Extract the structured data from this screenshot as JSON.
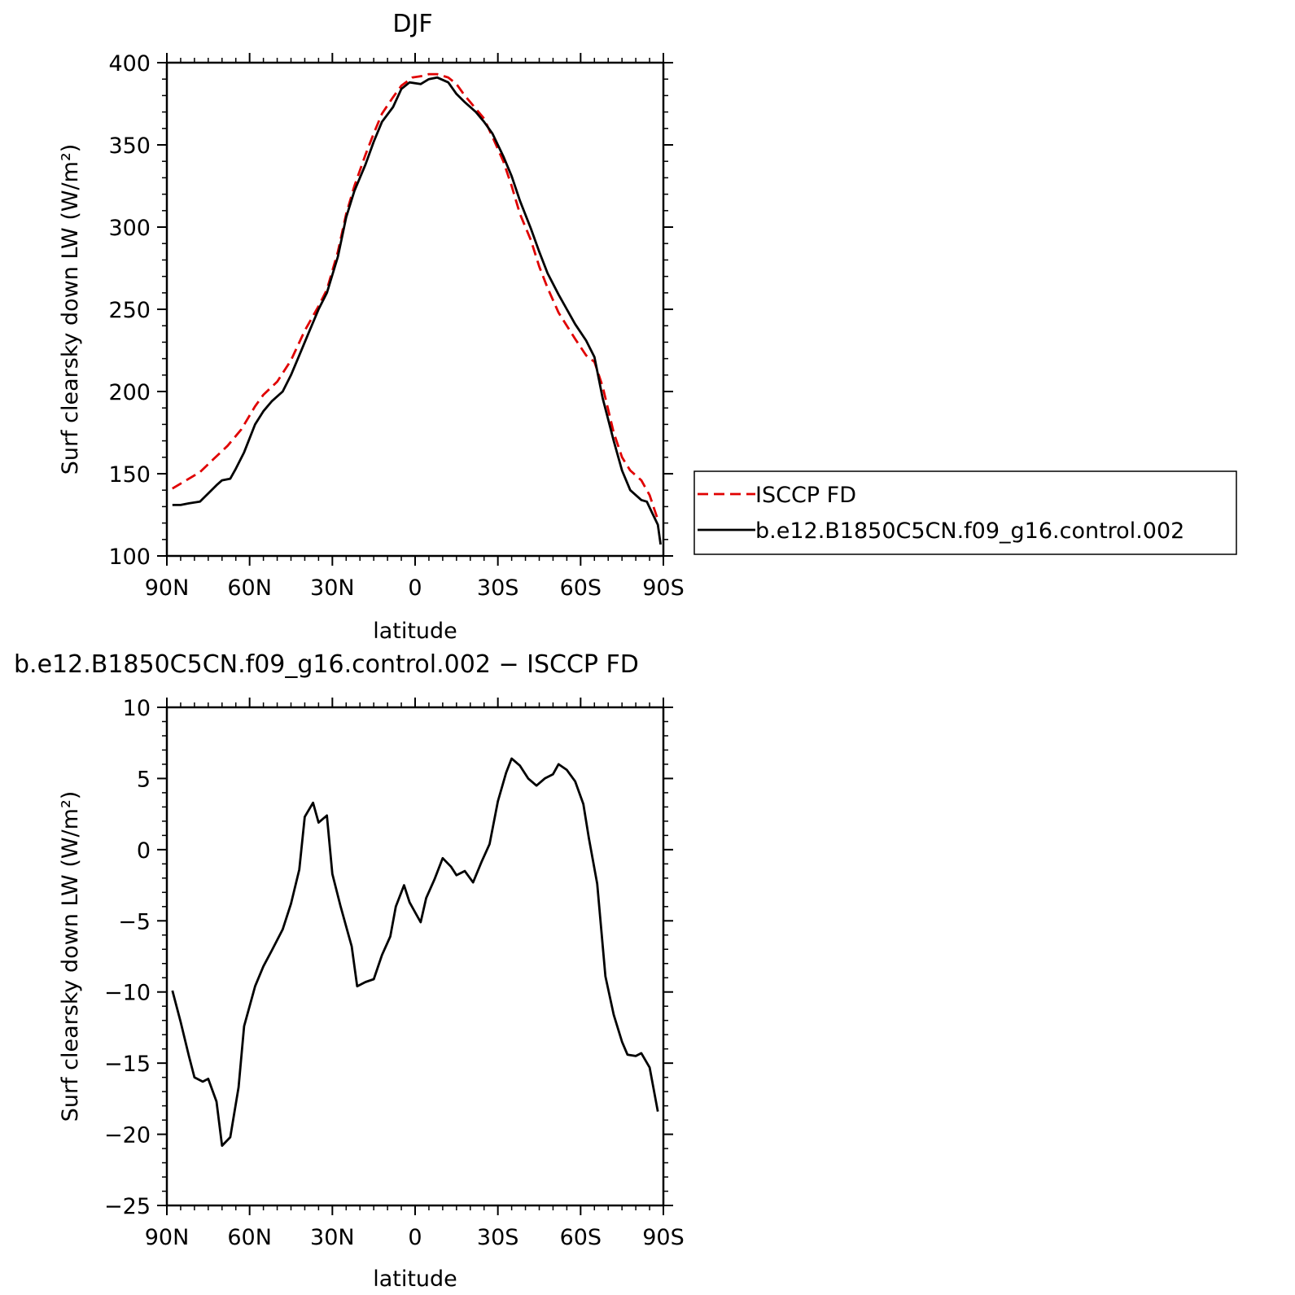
{
  "chart_data": [
    {
      "type": "line",
      "title": "DJF",
      "xlabel": "latitude",
      "ylabel": "Surf clearsky down LW (W/m²)",
      "xlim": [
        90,
        -90
      ],
      "ylim": [
        100,
        400
      ],
      "xticks": [
        {
          "value": 90,
          "label": "90N"
        },
        {
          "value": 60,
          "label": "60N"
        },
        {
          "value": 30,
          "label": "30N"
        },
        {
          "value": 0,
          "label": "0"
        },
        {
          "value": -30,
          "label": "30S"
        },
        {
          "value": -60,
          "label": "60S"
        },
        {
          "value": -90,
          "label": "90S"
        }
      ],
      "yticks": [
        {
          "value": 100,
          "label": "100"
        },
        {
          "value": 150,
          "label": "150"
        },
        {
          "value": 200,
          "label": "200"
        },
        {
          "value": 250,
          "label": "250"
        },
        {
          "value": 300,
          "label": "300"
        },
        {
          "value": 350,
          "label": "350"
        },
        {
          "value": 400,
          "label": "400"
        }
      ],
      "legend_position": "right",
      "series": [
        {
          "name": "ISCCP FD",
          "color": "#e00000",
          "dash": "dashed",
          "points": [
            [
              88,
              141
            ],
            [
              83,
              146
            ],
            [
              78,
              151
            ],
            [
              73,
              159
            ],
            [
              68,
              167
            ],
            [
              63,
              177
            ],
            [
              58,
              191
            ],
            [
              55,
              198
            ],
            [
              50,
              206
            ],
            [
              45,
              219
            ],
            [
              40,
              237
            ],
            [
              35,
              252
            ],
            [
              32,
              262
            ],
            [
              28,
              285
            ],
            [
              25,
              308
            ],
            [
              22,
              325
            ],
            [
              18,
              344
            ],
            [
              15,
              357
            ],
            [
              12,
              369
            ],
            [
              8,
              379
            ],
            [
              5,
              386
            ],
            [
              1,
              391
            ],
            [
              -3,
              392
            ],
            [
              -5,
              393
            ],
            [
              -8,
              393
            ],
            [
              -12,
              391
            ],
            [
              -15,
              387
            ],
            [
              -18,
              380
            ],
            [
              -22,
              372
            ],
            [
              -25,
              366
            ],
            [
              -28,
              355
            ],
            [
              -32,
              340
            ],
            [
              -35,
              325
            ],
            [
              -38,
              308
            ],
            [
              -42,
              292
            ],
            [
              -45,
              276
            ],
            [
              -48,
              263
            ],
            [
              -52,
              248
            ],
            [
              -55,
              240
            ],
            [
              -58,
              232
            ],
            [
              -62,
              222
            ],
            [
              -65,
              218
            ],
            [
              -68,
              203
            ],
            [
              -72,
              175
            ],
            [
              -75,
              160
            ],
            [
              -78,
              152
            ],
            [
              -82,
              146
            ],
            [
              -85,
              137
            ],
            [
              -88,
              122
            ]
          ]
        },
        {
          "name": "b.e12.B1850C5CN.f09_g16.control.002",
          "color": "#000000",
          "dash": "solid",
          "points": [
            [
              88,
              131
            ],
            [
              85,
              131
            ],
            [
              82,
              132
            ],
            [
              78,
              133
            ],
            [
              75,
              138
            ],
            [
              72,
              143
            ],
            [
              70,
              146
            ],
            [
              67,
              147
            ],
            [
              65,
              153
            ],
            [
              62,
              163
            ],
            [
              58,
              180
            ],
            [
              55,
              188
            ],
            [
              52,
              194
            ],
            [
              48,
              200
            ],
            [
              45,
              210
            ],
            [
              42,
              222
            ],
            [
              38,
              238
            ],
            [
              35,
              250
            ],
            [
              32,
              260
            ],
            [
              28,
              282
            ],
            [
              25,
              306
            ],
            [
              22,
              322
            ],
            [
              18,
              338
            ],
            [
              15,
              352
            ],
            [
              12,
              364
            ],
            [
              8,
              373
            ],
            [
              5,
              384
            ],
            [
              2,
              388
            ],
            [
              -2,
              387
            ],
            [
              -5,
              390
            ],
            [
              -8,
              391
            ],
            [
              -12,
              388
            ],
            [
              -15,
              381
            ],
            [
              -18,
              376
            ],
            [
              -22,
              370
            ],
            [
              -25,
              364
            ],
            [
              -28,
              357
            ],
            [
              -32,
              343
            ],
            [
              -35,
              331
            ],
            [
              -38,
              316
            ],
            [
              -42,
              299
            ],
            [
              -45,
              285
            ],
            [
              -48,
              272
            ],
            [
              -52,
              259
            ],
            [
              -55,
              250
            ],
            [
              -58,
              241
            ],
            [
              -62,
              231
            ],
            [
              -65,
              221
            ],
            [
              -68,
              196
            ],
            [
              -72,
              170
            ],
            [
              -75,
              152
            ],
            [
              -78,
              140
            ],
            [
              -82,
              134
            ],
            [
              -84,
              133
            ],
            [
              -86,
              126
            ],
            [
              -88,
              119
            ],
            [
              -89,
              107
            ]
          ]
        }
      ]
    },
    {
      "type": "line",
      "title": "b.e12.B1850C5CN.f09_g16.control.002 − ISCCP FD",
      "xlabel": "latitude",
      "ylabel": "Surf clearsky down LW (W/m²)",
      "xlim": [
        90,
        -90
      ],
      "ylim": [
        -25,
        10
      ],
      "xticks": [
        {
          "value": 90,
          "label": "90N"
        },
        {
          "value": 60,
          "label": "60N"
        },
        {
          "value": 30,
          "label": "30N"
        },
        {
          "value": 0,
          "label": "0"
        },
        {
          "value": -30,
          "label": "30S"
        },
        {
          "value": -60,
          "label": "60S"
        },
        {
          "value": -90,
          "label": "90S"
        }
      ],
      "yticks": [
        {
          "value": -25,
          "label": "−25"
        },
        {
          "value": -20,
          "label": "−20"
        },
        {
          "value": -15,
          "label": "−15"
        },
        {
          "value": -10,
          "label": "−10"
        },
        {
          "value": -5,
          "label": "−5"
        },
        {
          "value": 0,
          "label": "0"
        },
        {
          "value": 5,
          "label": "5"
        },
        {
          "value": 10,
          "label": "10"
        }
      ],
      "series": [
        {
          "color": "#000000",
          "dash": "solid",
          "points": [
            [
              88,
              -9.9
            ],
            [
              85,
              -12.1
            ],
            [
              82,
              -14.5
            ],
            [
              80,
              -16.0
            ],
            [
              77,
              -16.3
            ],
            [
              75,
              -16.1
            ],
            [
              72,
              -17.7
            ],
            [
              70,
              -20.8
            ],
            [
              67,
              -20.2
            ],
            [
              64,
              -16.7
            ],
            [
              62,
              -12.4
            ],
            [
              58,
              -9.6
            ],
            [
              55,
              -8.2
            ],
            [
              52,
              -7.1
            ],
            [
              48,
              -5.6
            ],
            [
              45,
              -3.8
            ],
            [
              42,
              -1.4
            ],
            [
              40,
              2.3
            ],
            [
              37,
              3.3
            ],
            [
              35,
              1.9
            ],
            [
              32,
              2.4
            ],
            [
              30,
              -1.7
            ],
            [
              27,
              -4.0
            ],
            [
              23,
              -6.8
            ],
            [
              21,
              -9.6
            ],
            [
              18,
              -9.3
            ],
            [
              15,
              -9.1
            ],
            [
              12,
              -7.4
            ],
            [
              9,
              -6.1
            ],
            [
              7,
              -4.0
            ],
            [
              4,
              -2.5
            ],
            [
              2,
              -3.7
            ],
            [
              -2,
              -5.1
            ],
            [
              -4,
              -3.4
            ],
            [
              -7,
              -2.1
            ],
            [
              -10,
              -0.6
            ],
            [
              -13,
              -1.2
            ],
            [
              -15,
              -1.8
            ],
            [
              -18,
              -1.5
            ],
            [
              -21,
              -2.3
            ],
            [
              -24,
              -0.9
            ],
            [
              -27,
              0.4
            ],
            [
              -30,
              3.4
            ],
            [
              -33,
              5.4
            ],
            [
              -35,
              6.4
            ],
            [
              -38,
              5.9
            ],
            [
              -41,
              5.0
            ],
            [
              -44,
              4.5
            ],
            [
              -47,
              5.0
            ],
            [
              -50,
              5.3
            ],
            [
              -52,
              6.0
            ],
            [
              -55,
              5.6
            ],
            [
              -58,
              4.8
            ],
            [
              -61,
              3.2
            ],
            [
              -63,
              0.8
            ],
            [
              -66,
              -2.4
            ],
            [
              -69,
              -8.9
            ],
            [
              -72,
              -11.6
            ],
            [
              -75,
              -13.5
            ],
            [
              -77,
              -14.4
            ],
            [
              -80,
              -14.5
            ],
            [
              -82,
              -14.3
            ],
            [
              -85,
              -15.3
            ],
            [
              -88,
              -18.4
            ]
          ]
        }
      ]
    }
  ]
}
